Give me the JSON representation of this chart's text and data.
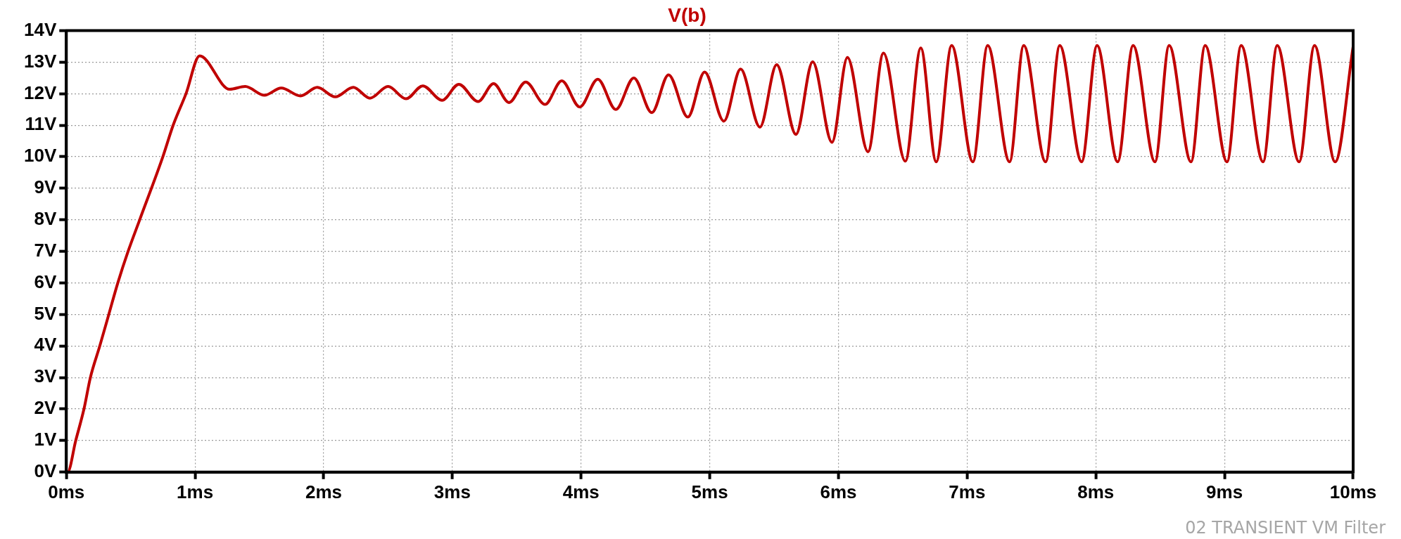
{
  "chart_data": {
    "type": "line",
    "title": "V(b)",
    "x": [
      0,
      0.01,
      0.073,
      0.137,
      0.187,
      0.26,
      0.33,
      0.4,
      0.48,
      0.57,
      0.75,
      0.83,
      0.93,
      1.036,
      1.27,
      1.39,
      1.54,
      1.67,
      1.82,
      1.95,
      2.09,
      2.23,
      2.36,
      2.5,
      2.64,
      2.77,
      2.92,
      3.05,
      3.2,
      3.32,
      3.44,
      3.57,
      3.72,
      3.85,
      3.99,
      4.13,
      4.27,
      4.41,
      4.55,
      4.68,
      4.83,
      4.96,
      5.11,
      5.24,
      5.39,
      5.52,
      5.67,
      5.8,
      5.95,
      6.07,
      6.23,
      6.35,
      6.52,
      6.64,
      6.76,
      6.88,
      7.045,
      7.16,
      7.33,
      7.44,
      7.61,
      7.72,
      7.89,
      8.01,
      8.17,
      8.29,
      8.46,
      8.57,
      8.74,
      8.85,
      9.02,
      9.13,
      9.3,
      9.41,
      9.58,
      9.7,
      9.86,
      10.0
    ],
    "series": [
      {
        "color": "#c00000",
        "values": [
          0,
          0,
          1,
          2,
          3,
          4,
          5,
          6,
          7,
          8,
          10,
          11,
          12,
          13.2,
          12.14,
          12.23,
          11.95,
          12.18,
          11.93,
          12.2,
          11.9,
          12.2,
          11.86,
          12.23,
          11.84,
          12.25,
          11.79,
          12.3,
          11.75,
          12.32,
          11.72,
          12.37,
          11.66,
          12.41,
          11.58,
          12.46,
          11.5,
          12.5,
          11.4,
          12.6,
          11.26,
          12.69,
          11.13,
          12.78,
          10.94,
          12.92,
          10.71,
          13.01,
          10.46,
          13.15,
          10.16,
          13.29,
          9.86,
          13.45,
          9.84,
          13.53,
          9.84,
          13.53,
          9.84,
          13.53,
          9.84,
          13.53,
          9.84,
          13.53,
          9.84,
          13.53,
          9.84,
          13.53,
          9.84,
          13.53,
          9.84,
          13.53,
          9.84,
          13.53,
          9.84,
          13.53,
          9.84,
          13.5
        ]
      }
    ],
    "xlim": [
      0,
      10
    ],
    "xticks": [
      {
        "value": 0,
        "label": "0ms"
      },
      {
        "value": 1,
        "label": "1ms"
      },
      {
        "value": 2,
        "label": "2ms"
      },
      {
        "value": 3,
        "label": "3ms"
      },
      {
        "value": 4,
        "label": "4ms"
      },
      {
        "value": 5,
        "label": "5ms"
      },
      {
        "value": 6,
        "label": "6ms"
      },
      {
        "value": 7,
        "label": "7ms"
      },
      {
        "value": 8,
        "label": "8ms"
      },
      {
        "value": 9,
        "label": "9ms"
      },
      {
        "value": 10,
        "label": "10ms"
      }
    ],
    "ylim": [
      0,
      14
    ],
    "yticks": [
      {
        "value": 0,
        "label": "0V"
      },
      {
        "value": 1,
        "label": "1V"
      },
      {
        "value": 2,
        "label": "2V"
      },
      {
        "value": 3,
        "label": "3V"
      },
      {
        "value": 4,
        "label": "4V"
      },
      {
        "value": 5,
        "label": "5V"
      },
      {
        "value": 6,
        "label": "6V"
      },
      {
        "value": 7,
        "label": "7V"
      },
      {
        "value": 8,
        "label": "8V"
      },
      {
        "value": 9,
        "label": "9V"
      },
      {
        "value": 10,
        "label": "10V"
      },
      {
        "value": 11,
        "label": "11V"
      },
      {
        "value": 12,
        "label": "12V"
      },
      {
        "value": 13,
        "label": "13V"
      },
      {
        "value": 14,
        "label": "14V"
      }
    ],
    "grid": true,
    "marker": "none",
    "line_style": "solid",
    "annotations": [
      "02 TRANSIENT VM Filter"
    ]
  }
}
